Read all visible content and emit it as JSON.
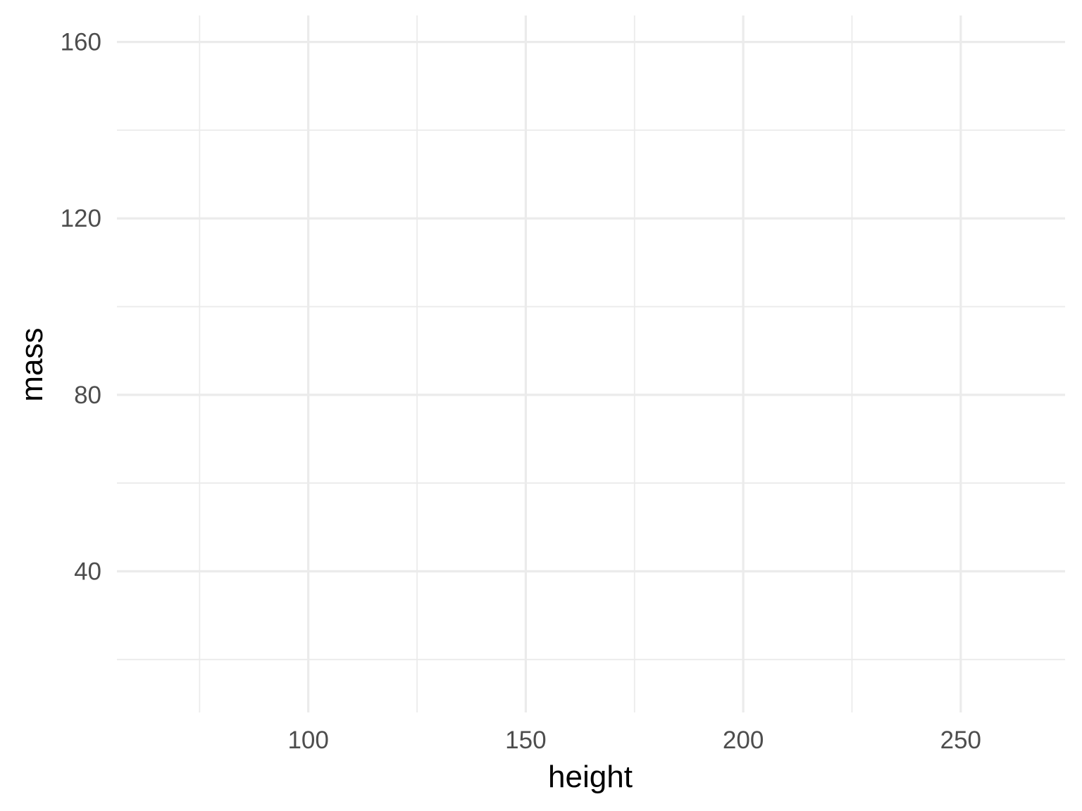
{
  "chart_data": {
    "type": "scatter",
    "title": "",
    "xlabel": "height",
    "ylabel": "mass",
    "xlim": [
      56,
      274
    ],
    "ylim": [
      8,
      166
    ],
    "x_major_ticks": [
      100,
      150,
      200,
      250
    ],
    "x_minor_ticks": [
      75,
      125,
      175,
      225
    ],
    "y_major_ticks": [
      40,
      80,
      120,
      160
    ],
    "y_minor_ticks": [
      20,
      60,
      100,
      140
    ],
    "x_tick_labels": [
      "100",
      "150",
      "200",
      "250"
    ],
    "y_tick_labels": [
      "40",
      "80",
      "120",
      "160"
    ],
    "grid": true,
    "legend": "none",
    "series": [
      {
        "x": [],
        "y": []
      }
    ]
  },
  "colors": {
    "grid": "#ebebeb",
    "tick_label": "#4d4d4d",
    "axis_title": "#000000",
    "background": "#ffffff"
  }
}
